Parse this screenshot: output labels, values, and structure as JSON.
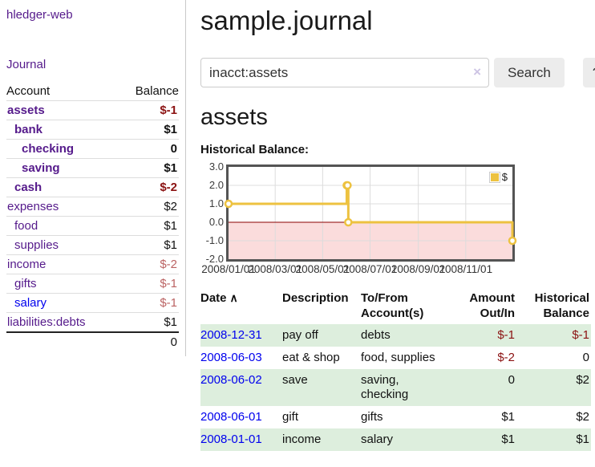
{
  "colors": {
    "link_purple": "#551a8b",
    "link_blue": "#0000ee",
    "negative_strong": "#8b1212",
    "negative_soft": "#bb6363",
    "row_stripe_green": "#ddeedd",
    "chart_series_yellow": "#EDC240"
  },
  "sidebar": {
    "brand": "hledger-web",
    "journal_link": "Journal",
    "table": {
      "account_header": "Account",
      "balance_header": "Balance"
    },
    "accounts": [
      {
        "label": "assets",
        "indent": 0,
        "bold": true,
        "link": "purple",
        "balance": "$-1",
        "balance_style": "neg-strong"
      },
      {
        "label": "bank",
        "indent": 1,
        "bold": true,
        "link": "purple",
        "balance": "$1",
        "balance_style": "pos"
      },
      {
        "label": "checking",
        "indent": 2,
        "bold": true,
        "link": "purple",
        "balance": "0",
        "balance_style": "pos"
      },
      {
        "label": "saving",
        "indent": 2,
        "bold": true,
        "link": "purple",
        "balance": "$1",
        "balance_style": "pos"
      },
      {
        "label": "cash",
        "indent": 1,
        "bold": true,
        "link": "purple",
        "balance": "$-2",
        "balance_style": "neg-strong"
      },
      {
        "label": "expenses",
        "indent": 0,
        "bold": false,
        "link": "purple",
        "balance": "$2",
        "balance_style": "pos"
      },
      {
        "label": "food",
        "indent": 1,
        "bold": false,
        "link": "purple",
        "balance": "$1",
        "balance_style": "pos"
      },
      {
        "label": "supplies",
        "indent": 1,
        "bold": false,
        "link": "purple",
        "balance": "$1",
        "balance_style": "pos"
      },
      {
        "label": "income",
        "indent": 0,
        "bold": false,
        "link": "purple",
        "balance": "$-2",
        "balance_style": "neg-soft"
      },
      {
        "label": "gifts",
        "indent": 1,
        "bold": false,
        "link": "purple",
        "balance": "$-1",
        "balance_style": "neg-soft"
      },
      {
        "label": "salary",
        "indent": 1,
        "bold": false,
        "link": "blue",
        "balance": "$-1",
        "balance_style": "neg-soft"
      },
      {
        "label": "liabilities:debts",
        "indent": 0,
        "bold": false,
        "link": "purple",
        "balance": "$1",
        "balance_style": "pos"
      }
    ],
    "total": "0"
  },
  "header": {
    "title": "sample.journal"
  },
  "search": {
    "value": "inacct:assets",
    "clear_icon": "×",
    "button_label": "Search",
    "help_label": "?"
  },
  "account_page": {
    "title": "assets",
    "chart_label": "Historical Balance:"
  },
  "chart_data": {
    "type": "line",
    "step": true,
    "title": "Historical Balance",
    "series": [
      {
        "name": "$",
        "color": "#EDC240",
        "points": [
          [
            "2008-01-01",
            1
          ],
          [
            "2008-06-01",
            2
          ],
          [
            "2008-06-02",
            2
          ],
          [
            "2008-06-03",
            0
          ],
          [
            "2008-12-31",
            -1
          ]
        ]
      }
    ],
    "x_ticks": [
      "2008/01/01",
      "2008/03/01",
      "2008/05/01",
      "2008/07/01",
      "2008/09/01",
      "2008/11/01"
    ],
    "y_ticks": [
      3.0,
      2.0,
      1.0,
      0.0,
      -1.0,
      -2.0
    ],
    "ylim": [
      -2,
      3
    ],
    "xlim": [
      "2008-01-01",
      "2008-12-31"
    ],
    "legend": {
      "label": "$",
      "position": "top-right"
    },
    "grid": true,
    "negative_region_fill": "#fbdcdc",
    "zero_line_color": "#8b0000"
  },
  "register": {
    "columns": {
      "date": "Date",
      "sort_indicator": "∧",
      "description": "Description",
      "tofrom_line1": "To/From",
      "tofrom_line2": "Account(s)",
      "amount_line1": "Amount",
      "amount_line2": "Out/In",
      "balance_line1": "Historical",
      "balance_line2": "Balance"
    },
    "rows": [
      {
        "date": "2008-12-31",
        "description": "pay off",
        "accounts": "debts",
        "amount": "$-1",
        "amount_style": "neg",
        "balance": "$-1",
        "balance_style": "neg"
      },
      {
        "date": "2008-06-03",
        "description": "eat & shop",
        "accounts": "food, supplies",
        "amount": "$-2",
        "amount_style": "neg",
        "balance": "0",
        "balance_style": "pos"
      },
      {
        "date": "2008-06-02",
        "description": "save",
        "accounts": "saving, checking",
        "amount": "0",
        "amount_style": "pos",
        "balance": "$2",
        "balance_style": "pos"
      },
      {
        "date": "2008-06-01",
        "description": "gift",
        "accounts": "gifts",
        "amount": "$1",
        "amount_style": "pos",
        "balance": "$2",
        "balance_style": "pos"
      },
      {
        "date": "2008-01-01",
        "description": "income",
        "accounts": "salary",
        "amount": "$1",
        "amount_style": "pos",
        "balance": "$1",
        "balance_style": "pos"
      }
    ]
  }
}
